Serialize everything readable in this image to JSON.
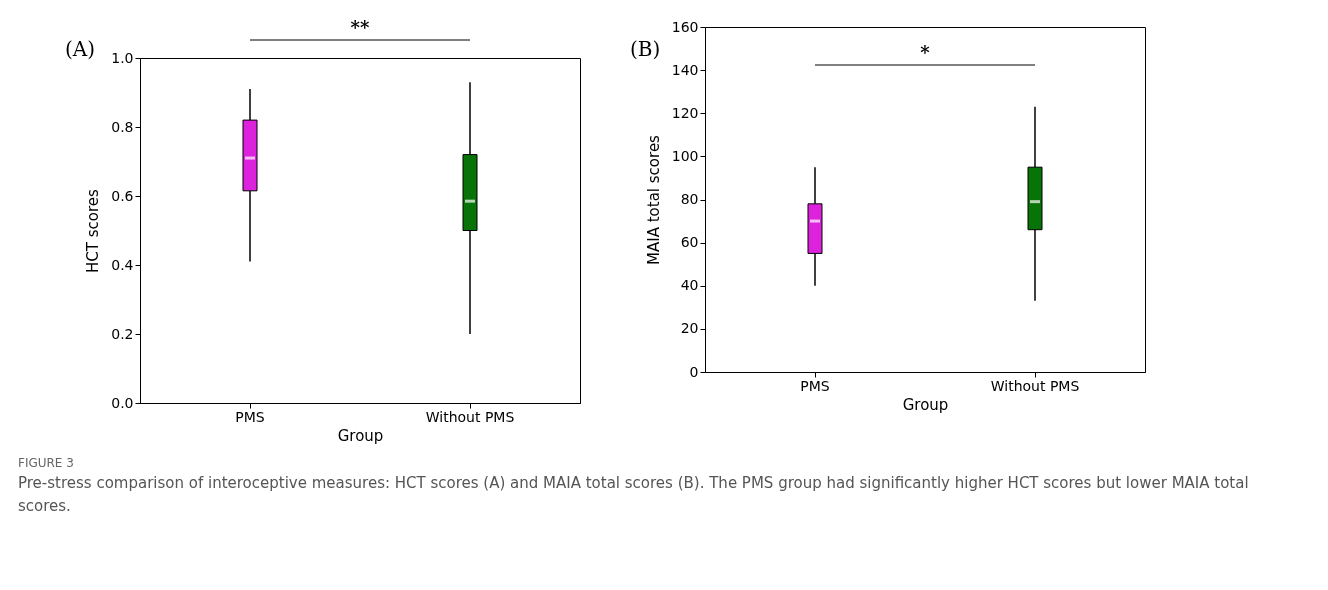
{
  "chart_data": [
    {
      "type": "box",
      "title": "(A)",
      "xlabel": "Group",
      "ylabel": "HCT scores",
      "categories": [
        "PMS",
        "Without PMS"
      ],
      "colors": [
        "#dd22dd",
        "#087408"
      ],
      "boxes": [
        {
          "low": 0.41,
          "q1": 0.615,
          "median": 0.71,
          "q3": 0.82,
          "high": 0.91
        },
        {
          "low": 0.2,
          "q1": 0.5,
          "median": 0.585,
          "q3": 0.72,
          "high": 0.93
        }
      ],
      "ylim": [
        0,
        1
      ],
      "yticks": [
        {
          "value": 0,
          "label": "0.0"
        },
        0.2,
        0.4,
        0.6,
        0.8,
        {
          "value": 1,
          "label": "1.0"
        }
      ],
      "grid": false,
      "annotations": [
        "**"
      ]
    },
    {
      "type": "box",
      "title": "(B)",
      "xlabel": "Group",
      "ylabel": "MAIA total scores",
      "categories": [
        "PMS",
        "Without PMS"
      ],
      "colors": [
        "#dd22dd",
        "#087408"
      ],
      "boxes": [
        {
          "low": 40,
          "q1": 55,
          "median": 70,
          "q3": 78,
          "high": 95
        },
        {
          "low": 33,
          "q1": 66,
          "median": 79,
          "q3": 95,
          "high": 123
        }
      ],
      "ylim": [
        0,
        160
      ],
      "yticks": [
        0,
        20,
        40,
        60,
        80,
        100,
        120,
        140,
        160
      ],
      "grid": false,
      "annotations": [
        "*",
        "FIGURE 3",
        "Pre-stress comparison of interoceptive measures: HCT scores (A) and MAIA total scores (B). The PMS group had significantly higher HCT scores but lower MAIA total scores."
      ]
    }
  ]
}
